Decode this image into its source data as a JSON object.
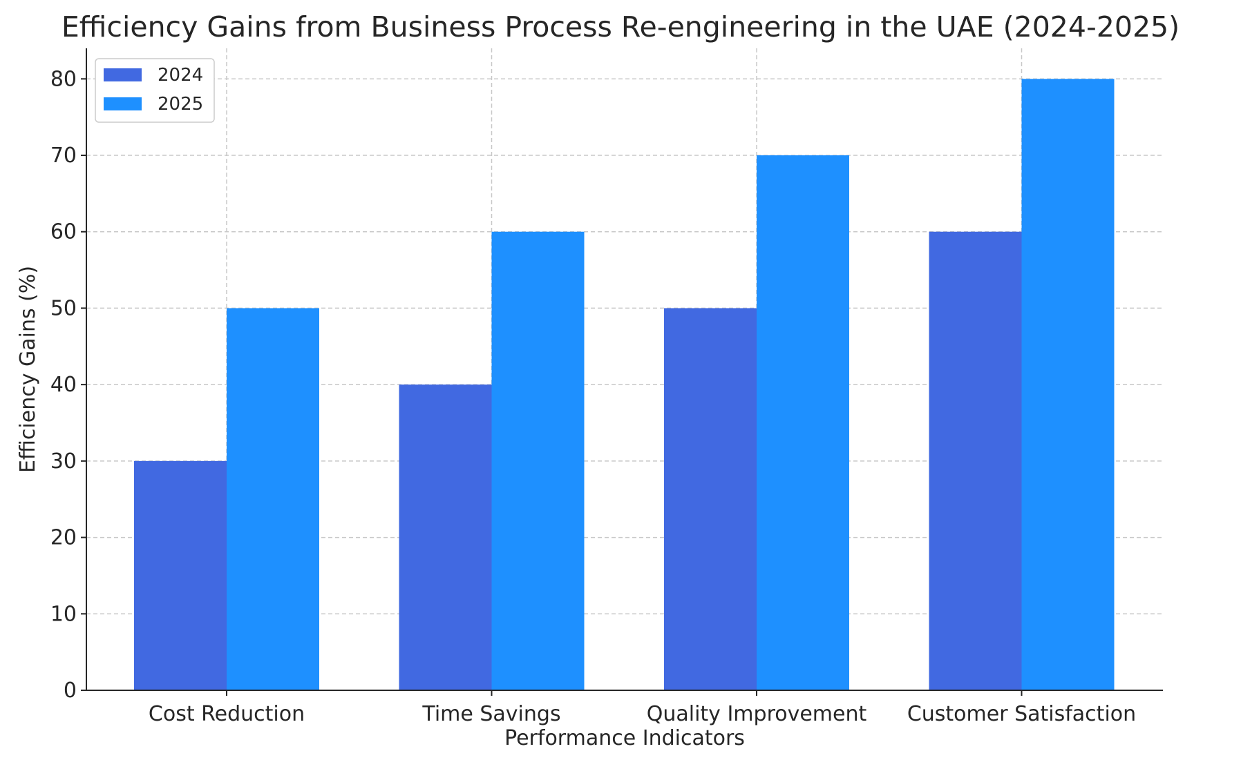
{
  "chart_data": {
    "type": "bar",
    "title": "Efficiency Gains from Business Process Re-engineering in the UAE (2024-2025)",
    "xlabel": "Performance Indicators",
    "ylabel": "Efficiency Gains (%)",
    "categories": [
      "Cost Reduction",
      "Time Savings",
      "Quality Improvement",
      "Customer Satisfaction"
    ],
    "series": [
      {
        "name": "2024",
        "color": "#4169e1",
        "values": [
          30,
          40,
          50,
          60
        ]
      },
      {
        "name": "2025",
        "color": "#1e90ff",
        "values": [
          50,
          60,
          70,
          80
        ]
      }
    ],
    "ylim": [
      0,
      84
    ],
    "yticks": [
      0,
      10,
      20,
      30,
      40,
      50,
      60,
      70,
      80
    ],
    "grid": true,
    "legend": "top-left"
  }
}
